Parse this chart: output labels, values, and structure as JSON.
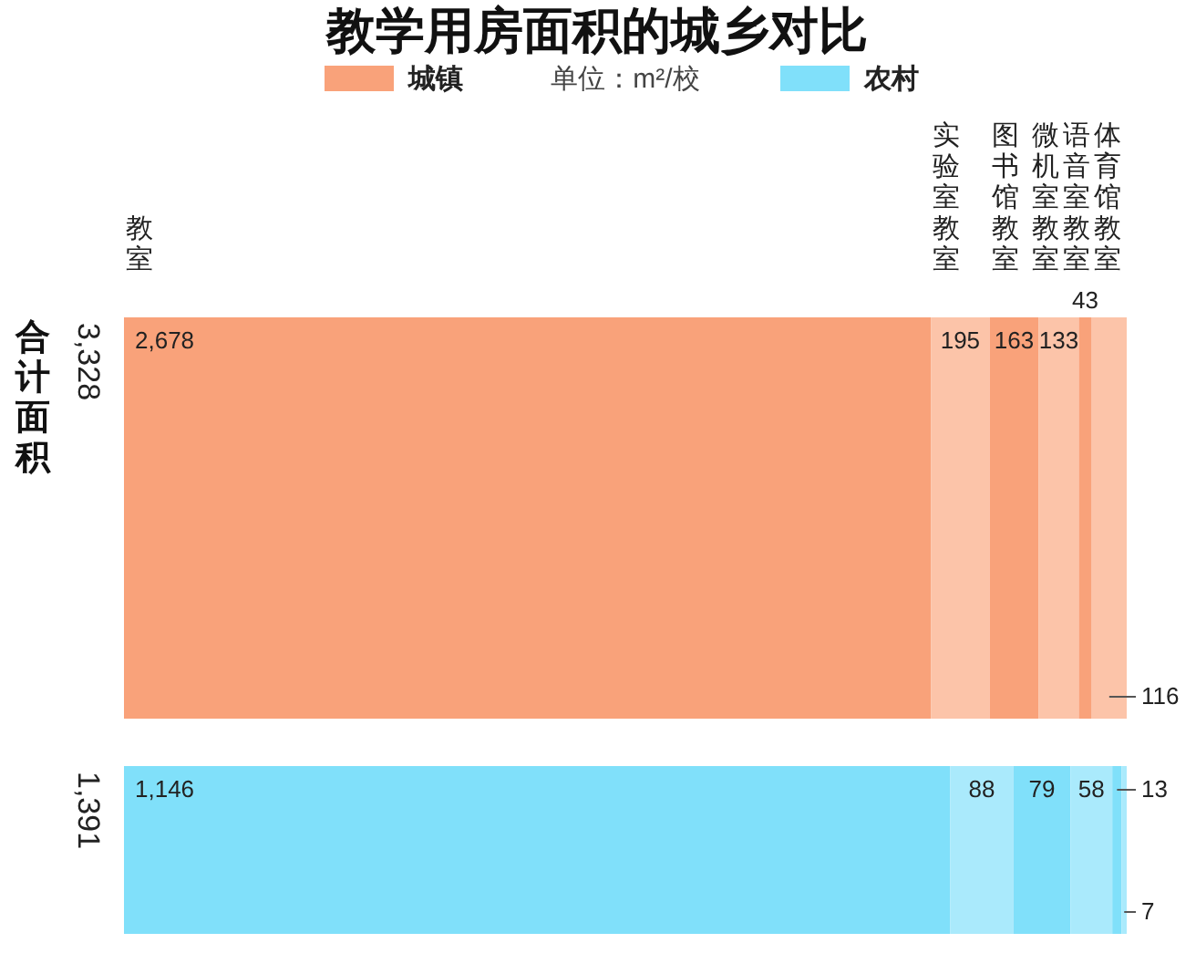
{
  "chart_data": {
    "type": "other",
    "title": "教学用房面积的城乡对比",
    "subtitle": "单位：m²/校",
    "legend": "top",
    "ylabel": "合计面积",
    "categories": [
      "教室",
      "实验室教室",
      "图书馆教室",
      "微机室教室",
      "语音室教室",
      "体育馆教室"
    ],
    "totals": [
      "3,328",
      "1,391"
    ],
    "series": [
      {
        "name": "城镇",
        "color": "#f9a27a",
        "colors": [
          "#f9a27a",
          "#fcc4a9",
          "#f9a27a",
          "#fcc4a9",
          "#f9a27a",
          "#fcc4a9"
        ],
        "values": [
          2678,
          195,
          163,
          133,
          43,
          116
        ],
        "value_labels": [
          "2,678",
          "195",
          "163",
          "133",
          "43",
          "116"
        ]
      },
      {
        "name": "农村",
        "color": "#80e0fa",
        "colors": [
          "#80e0fa",
          "#aaeafc",
          "#80e0fa",
          "#aaeafc",
          "#80e0fa",
          "#aaeafc"
        ],
        "values": [
          1146,
          88,
          79,
          58,
          13,
          7
        ],
        "value_labels": [
          "1,146",
          "88",
          "79",
          "58",
          "13",
          "7"
        ]
      }
    ]
  }
}
